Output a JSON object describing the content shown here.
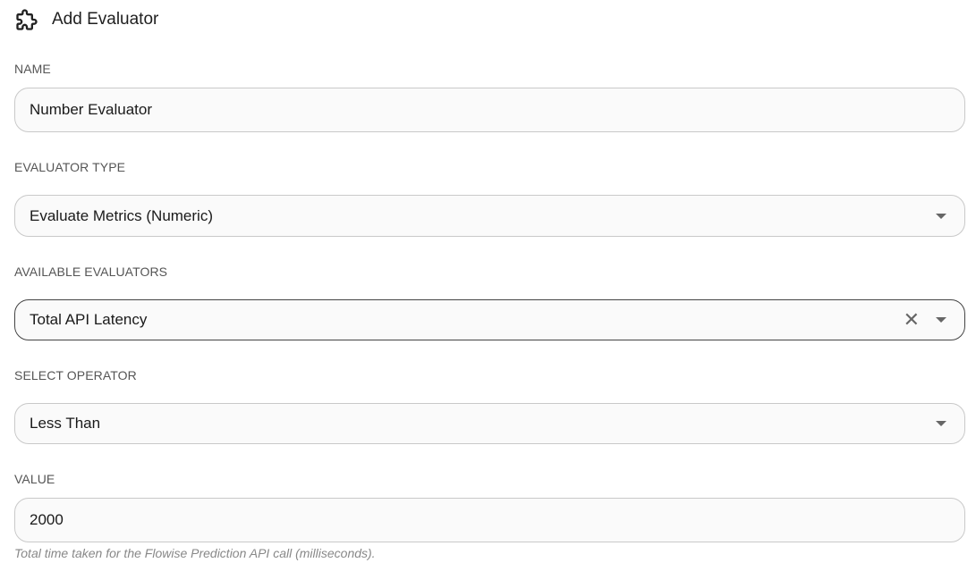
{
  "header": {
    "title": "Add Evaluator",
    "icon": "puzzle-icon"
  },
  "fields": {
    "name": {
      "label": "NAME",
      "value": "Number Evaluator"
    },
    "type": {
      "label": "EVALUATOR TYPE",
      "value": "Evaluate Metrics (Numeric)"
    },
    "available": {
      "label": "AVAILABLE EVALUATORS",
      "value": "Total API Latency"
    },
    "operator": {
      "label": "SELECT OPERATOR",
      "value": "Less Than"
    },
    "value": {
      "label": "VALUE",
      "value": "2000",
      "helper": "Total time taken for the Flowise Prediction API call (milliseconds)."
    }
  }
}
